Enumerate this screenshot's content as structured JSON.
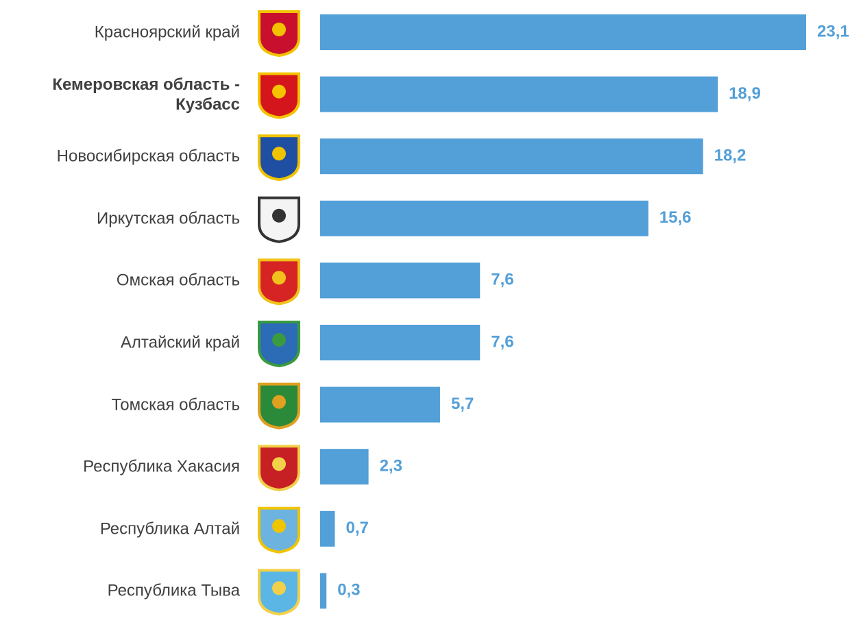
{
  "chart_data": {
    "type": "bar",
    "orientation": "horizontal",
    "categories": [
      "Красноярский край",
      "Кемеровская область - Кузбасс",
      "Новосибирская область",
      "Иркутская область",
      "Омская область",
      "Алтайский край",
      "Томская область",
      "Республика Хакасия",
      "Республика Алтай",
      "Республика Тыва"
    ],
    "values": [
      23.1,
      18.9,
      18.2,
      15.6,
      7.6,
      7.6,
      5.7,
      2.3,
      0.7,
      0.3
    ],
    "value_labels": [
      "23,1",
      "18,9",
      "18,2",
      "15,6",
      "7,6",
      "7,6",
      "5,7",
      "2,3",
      "0,7",
      "0,3"
    ],
    "color": "#539fd7",
    "label_color": "#539fd7",
    "highlight_index": 1
  }
}
